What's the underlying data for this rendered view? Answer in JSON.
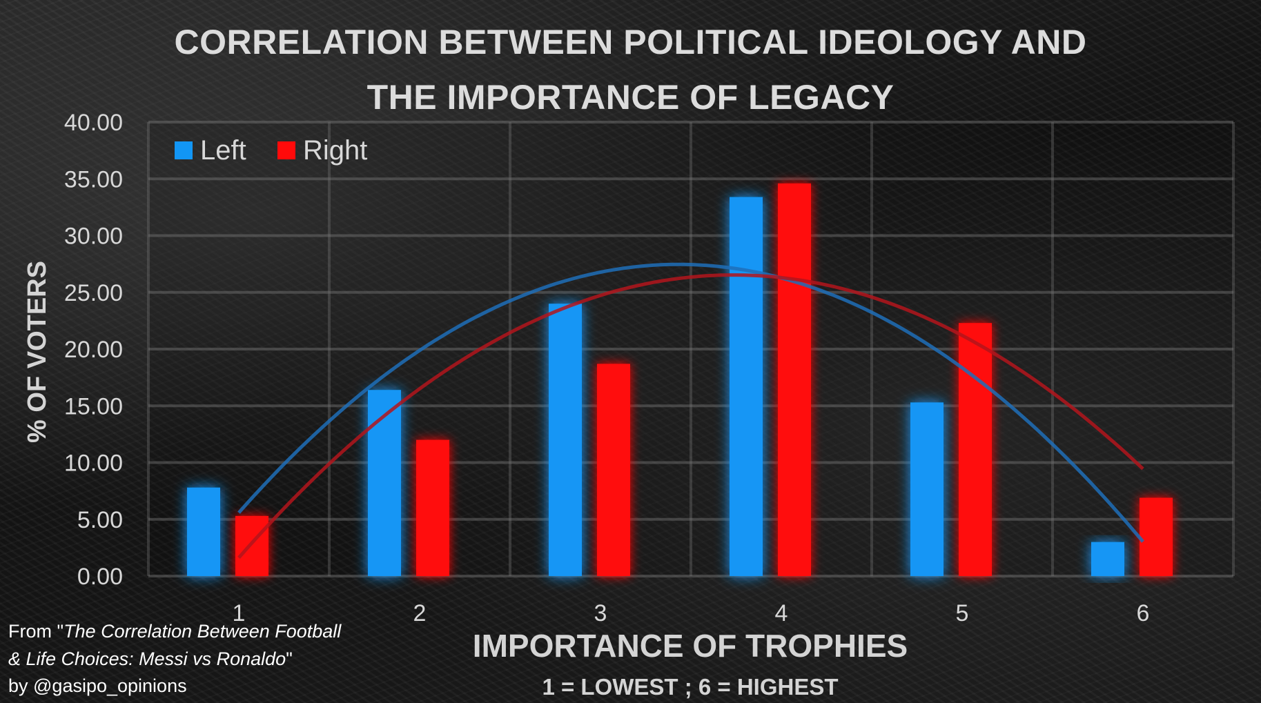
{
  "chart_data": {
    "type": "bar",
    "title_lines": [
      "CORRELATION BETWEEN POLITICAL IDEOLOGY AND",
      "THE IMPORTANCE OF LEGACY"
    ],
    "xlabel": "IMPORTANCE OF TROPHIES",
    "xlabel_sub": "1 = LOWEST ; 6 = HIGHEST",
    "ylabel": "% OF VOTERS",
    "categories": [
      "1",
      "2",
      "3",
      "4",
      "5",
      "6"
    ],
    "yticks": [
      "0.00",
      "5.00",
      "10.00",
      "15.00",
      "20.00",
      "25.00",
      "30.00",
      "35.00",
      "40.00"
    ],
    "ylim": [
      0,
      40
    ],
    "grid": true,
    "legend_position": "top-left",
    "trendlines": "polynomial",
    "series": [
      {
        "name": "Left",
        "color": "#1296f5",
        "values": [
          7.8,
          16.4,
          24.0,
          33.4,
          15.3,
          3.0
        ]
      },
      {
        "name": "Right",
        "color": "#ff0a0a",
        "values": [
          5.3,
          12.0,
          18.7,
          34.6,
          22.3,
          6.9
        ]
      }
    ]
  },
  "credit": {
    "prefix": "From \"",
    "italic_1": "The Correlation Between Football",
    "italic_2": "& Life Choices: Messi vs Ronaldo",
    "suffix": "\"",
    "byline": "by @gasipo_opinions"
  }
}
